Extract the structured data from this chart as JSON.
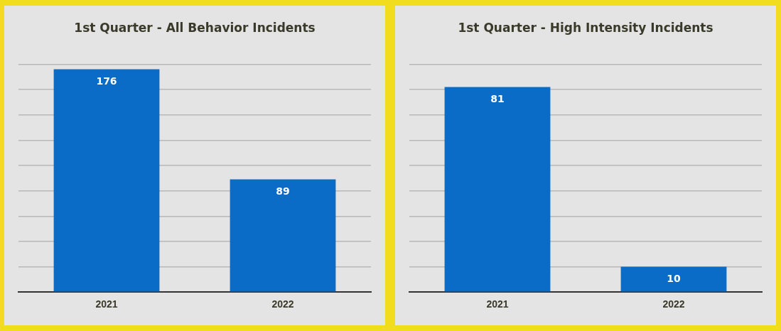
{
  "chart_data": [
    {
      "type": "bar",
      "title": "1st Quarter - All Behavior Incidents",
      "categories": [
        "2021",
        "2022"
      ],
      "values": [
        176,
        89
      ],
      "color": "#0a6cc6",
      "data_labels": true,
      "ylim": [
        0,
        180
      ],
      "yticks": [
        {
          "value": 0,
          "label": null
        },
        {
          "value": 20,
          "label": null
        },
        {
          "value": 40,
          "label": null
        },
        {
          "value": 60,
          "label": null
        },
        {
          "value": 80,
          "label": null
        },
        {
          "value": 100,
          "label": null
        },
        {
          "value": 120,
          "label": null
        },
        {
          "value": 140,
          "label": null
        },
        {
          "value": 160,
          "label": null
        },
        {
          "value": 180,
          "label": null
        }
      ],
      "grid": "y",
      "tick_labels": "x",
      "legend": false
    },
    {
      "type": "bar",
      "title": "1st Quarter - High Intensity Incidents",
      "categories": [
        "2021",
        "2022"
      ],
      "values": [
        81,
        10
      ],
      "color": "#0a6cc6",
      "data_labels": true,
      "ylim": [
        0,
        90
      ],
      "yticks": [
        {
          "value": 0,
          "label": null
        },
        {
          "value": 10,
          "label": null
        },
        {
          "value": 20,
          "label": null
        },
        {
          "value": 30,
          "label": null
        },
        {
          "value": 40,
          "label": null
        },
        {
          "value": 50,
          "label": null
        },
        {
          "value": 60,
          "label": null
        },
        {
          "value": 70,
          "label": null
        },
        {
          "value": 80,
          "label": null
        },
        {
          "value": 90,
          "label": null
        }
      ],
      "grid": "y",
      "tick_labels": "x",
      "legend": false
    }
  ]
}
